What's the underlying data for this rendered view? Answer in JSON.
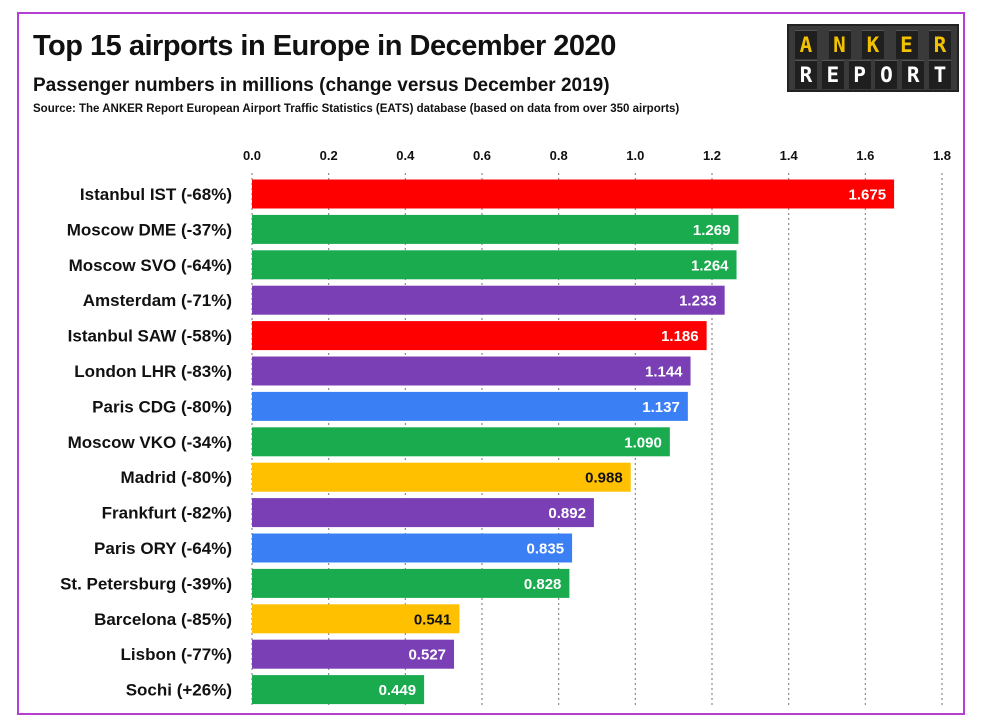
{
  "header": {
    "title": "Top 15 airports in Europe in December 2020",
    "subtitle": "Passenger numbers in millions (change versus December 2019)",
    "source": "Source: The ANKER Report European Airport Traffic Statistics (EATS) database (based on data from over 350 airports)"
  },
  "logo": {
    "top_text": "ANKER",
    "bottom_text": "REPORT",
    "top_color": "#f2c200",
    "bottom_color": "#ffffff",
    "background": "#3a3a3a"
  },
  "colors": {
    "frame": "#b53fd3",
    "red": "#ff0000",
    "green": "#1aab4f",
    "purple": "#7b3fb5",
    "blue": "#3b7ff5",
    "yellow": "#ffc000"
  },
  "chart_data": {
    "type": "bar",
    "orientation": "horizontal",
    "title": "Top 15 airports in Europe in December 2020",
    "subtitle": "Passenger numbers in millions (change versus December 2019)",
    "xlim": [
      0,
      1.8
    ],
    "x_ticks": [
      "0.0",
      "0.2",
      "0.4",
      "0.6",
      "0.8",
      "1.0",
      "1.2",
      "1.4",
      "1.6",
      "1.8"
    ],
    "grid": "vertical dotted",
    "categories": [
      "Istanbul IST (-68%)",
      "Moscow DME (-37%)",
      "Moscow SVO (-64%)",
      "Amsterdam (-71%)",
      "Istanbul SAW (-58%)",
      "London LHR (-83%)",
      "Paris CDG (-80%)",
      "Moscow VKO (-34%)",
      "Madrid (-80%)",
      "Frankfurt (-82%)",
      "Paris ORY (-64%)",
      "St. Petersburg (-39%)",
      "Barcelona (-85%)",
      "Lisbon (-77%)",
      "Sochi (+26%)"
    ],
    "values": [
      1.675,
      1.269,
      1.264,
      1.233,
      1.186,
      1.144,
      1.137,
      1.09,
      0.988,
      0.892,
      0.835,
      0.828,
      0.541,
      0.527,
      0.449
    ],
    "value_labels": [
      "1.675",
      "1.269",
      "1.264",
      "1.233",
      "1.186",
      "1.144",
      "1.137",
      "1.090",
      "0.988",
      "0.892",
      "0.835",
      "0.828",
      "0.541",
      "0.527",
      "0.449"
    ],
    "bar_colors": [
      "#ff0000",
      "#1aab4f",
      "#1aab4f",
      "#7b3fb5",
      "#ff0000",
      "#7b3fb5",
      "#3b7ff5",
      "#1aab4f",
      "#ffc000",
      "#7b3fb5",
      "#3b7ff5",
      "#1aab4f",
      "#ffc000",
      "#7b3fb5",
      "#1aab4f"
    ],
    "label_colors": [
      "#ffffff",
      "#ffffff",
      "#ffffff",
      "#ffffff",
      "#ffffff",
      "#ffffff",
      "#ffffff",
      "#ffffff",
      "#111111",
      "#ffffff",
      "#ffffff",
      "#ffffff",
      "#111111",
      "#ffffff",
      "#ffffff"
    ]
  }
}
